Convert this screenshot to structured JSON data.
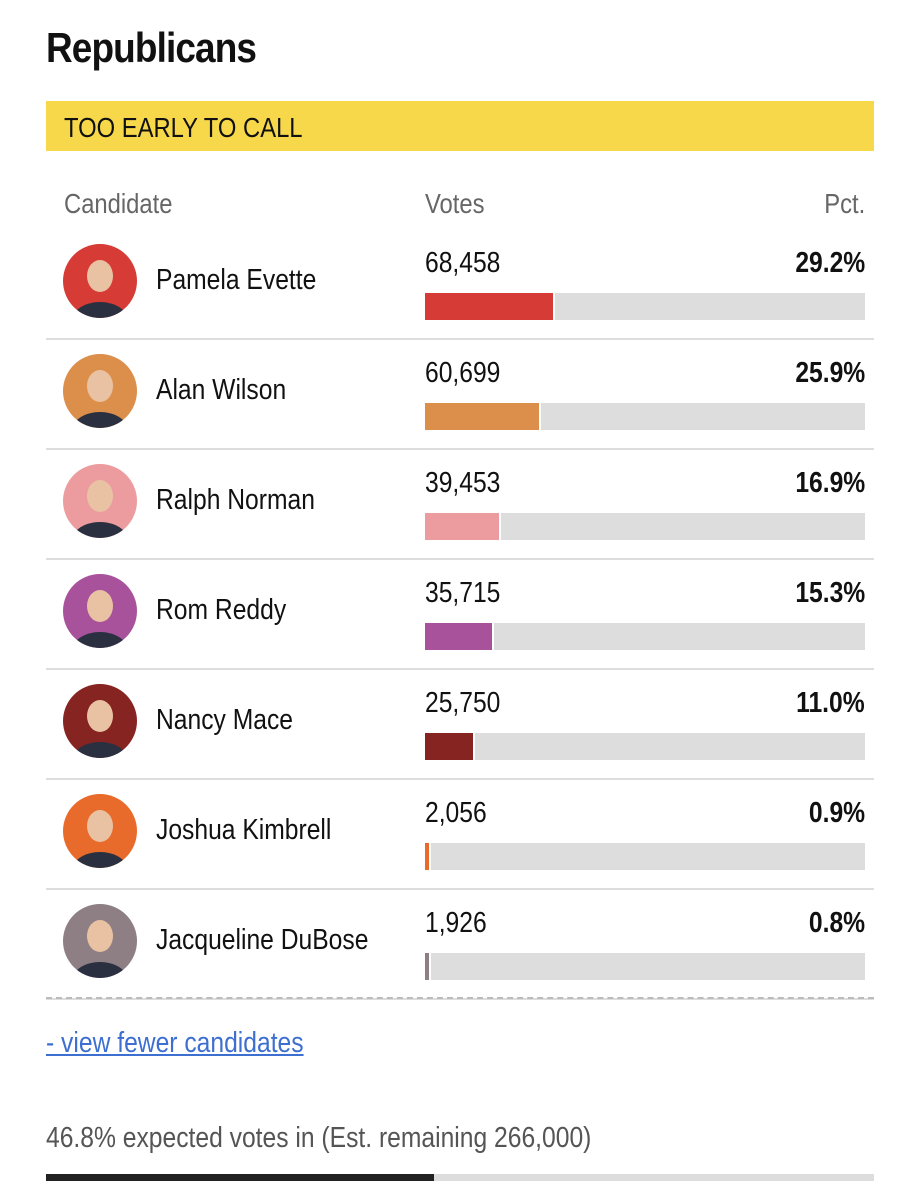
{
  "header": {
    "title": "Republicans",
    "status": "TOO EARLY TO CALL"
  },
  "table": {
    "columns": [
      "Candidate",
      "Votes",
      "Pct."
    ],
    "candidates": [
      {
        "name": "Pamela Evette",
        "votes": "68,458",
        "pct": 29.2,
        "pct_label": "29.2%",
        "color": "#d63b36"
      },
      {
        "name": "Alan Wilson",
        "votes": "60,699",
        "pct": 25.9,
        "pct_label": "25.9%",
        "color": "#dc8f4a"
      },
      {
        "name": "Ralph Norman",
        "votes": "39,453",
        "pct": 16.9,
        "pct_label": "16.9%",
        "color": "#ec9c9e"
      },
      {
        "name": "Rom Reddy",
        "votes": "35,715",
        "pct": 15.3,
        "pct_label": "15.3%",
        "color": "#a9529c"
      },
      {
        "name": "Nancy Mace",
        "votes": "25,750",
        "pct": 11.0,
        "pct_label": "11.0%",
        "color": "#862421"
      },
      {
        "name": "Joshua Kimbrell",
        "votes": "2,056",
        "pct": 0.9,
        "pct_label": "0.9%",
        "color": "#e86b2b"
      },
      {
        "name": "Jacqueline DuBose",
        "votes": "1,926",
        "pct": 0.8,
        "pct_label": "0.8%",
        "color": "#8e7f85"
      }
    ]
  },
  "link": "- view fewer candidates",
  "footer": {
    "text": "46.8% expected votes in (Est. remaining 266,000)",
    "reporting_pct": 46.8
  }
}
